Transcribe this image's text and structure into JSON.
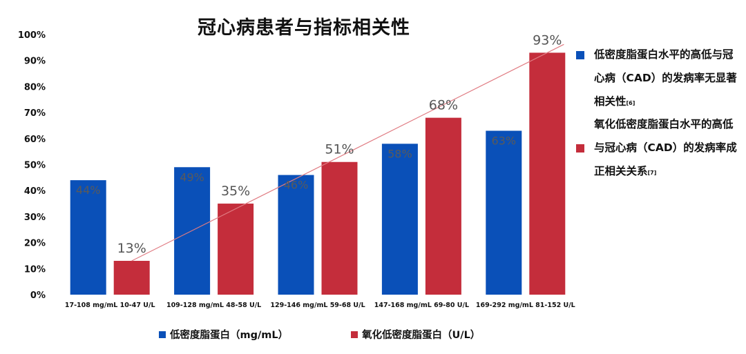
{
  "chart_data": {
    "type": "bar",
    "title": "冠心病患者与指标相关性",
    "ylim": [
      0,
      100
    ],
    "yticks": [
      "0%",
      "10%",
      "20%",
      "30%",
      "40%",
      "50%",
      "60%",
      "70%",
      "80%",
      "90%",
      "100%"
    ],
    "grid": false,
    "colors": {
      "ldl": "#0a50b8",
      "oxldl": "#c42d3b",
      "trend": "#e07b82"
    },
    "groups": [
      {
        "ldl_label": "17-108 mg/mL",
        "oxldl_label": "10-47 U/L",
        "ldl": 44,
        "oxldl": 13
      },
      {
        "ldl_label": "109-128 mg/mL",
        "oxldl_label": "48-58 U/L",
        "ldl": 49,
        "oxldl": 35
      },
      {
        "ldl_label": "129-146 mg/mL",
        "oxldl_label": "59-68 U/L",
        "ldl": 46,
        "oxldl": 51
      },
      {
        "ldl_label": "147-168 mg/mL",
        "oxldl_label": "69-80 U/L",
        "ldl": 58,
        "oxldl": 68
      },
      {
        "ldl_label": "169-292 mg/mL",
        "oxldl_label": "81-152 U/L",
        "ldl": 63,
        "oxldl": 93
      }
    ],
    "series": [
      {
        "name": "低密度脂蛋白（mg/mL）",
        "values": [
          44,
          49,
          46,
          58,
          63
        ]
      },
      {
        "name": "氧化低密度脂蛋白（U/L）",
        "values": [
          13,
          35,
          51,
          68,
          93
        ]
      }
    ],
    "trendline": {
      "series": 1,
      "from": 13,
      "to": 93
    },
    "value_labels": {
      "ldl": [
        "44%",
        "49%",
        "46%",
        "58%",
        "63%"
      ],
      "oxldl": [
        "13%",
        "35%",
        "51%",
        "68%",
        "93%"
      ]
    },
    "legend_position": "bottom"
  },
  "notes": {
    "ldl_text": "低密度脂蛋白水平的高低与冠心病（CAD）的发病率无显著相关性",
    "ldl_ref": "[6]",
    "oxldl_text": "氧化低密度脂蛋白水平的高低与冠心病（CAD）的发病率成正相关关系",
    "oxldl_ref": "[7]"
  }
}
